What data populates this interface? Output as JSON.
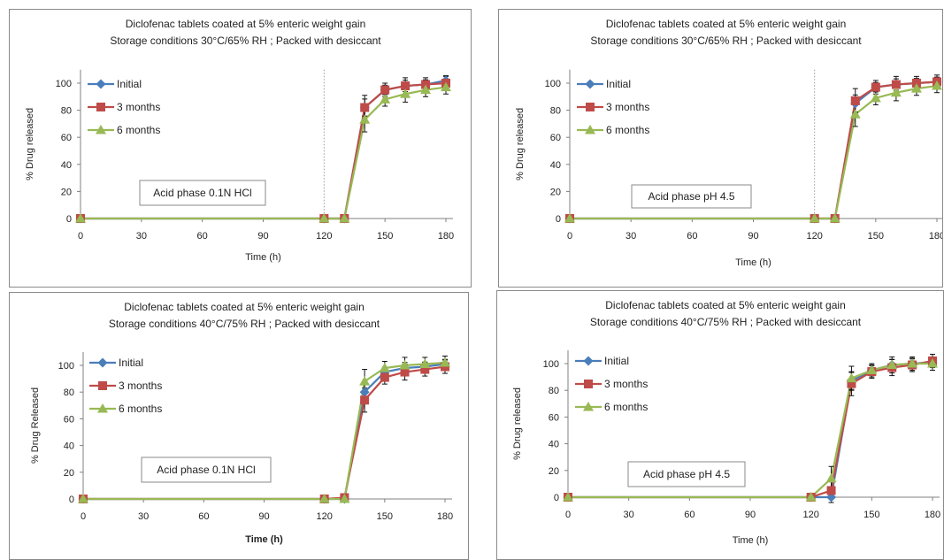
{
  "chart_data": [
    {
      "type": "line",
      "title": "Diclofenac tablets coated at 5% enteric weight gain",
      "subtitle": "Storage conditions 30°C/65% RH ; Packed with desiccant",
      "xlabel": "Time (h)",
      "ylabel": "% Drug released",
      "xlim": [
        0,
        180
      ],
      "ylim": [
        0,
        110
      ],
      "xticks": [
        "0",
        "30",
        "60",
        "90",
        "120",
        "150",
        "180"
      ],
      "yticks": [
        "0",
        "20",
        "40",
        "60",
        "80",
        "100"
      ],
      "x": [
        0,
        120,
        130,
        140,
        150,
        160,
        170,
        180
      ],
      "annotation": "Acid phase 0.1N HCl",
      "legend_position": "top-left",
      "reference_line_x": 120,
      "series": [
        {
          "name": "Initial",
          "color": "#4a7ebb",
          "marker": "diamond",
          "values": [
            0,
            0,
            0,
            82,
            95,
            98,
            99,
            102
          ]
        },
        {
          "name": "3 months",
          "color": "#be4b48",
          "marker": "square",
          "values": [
            0,
            0,
            0,
            82,
            95,
            98,
            99,
            100
          ]
        },
        {
          "name": "6 months",
          "color": "#98b954",
          "marker": "triangle",
          "values": [
            0,
            0,
            0,
            73,
            88,
            92,
            95,
            97
          ]
        }
      ]
    },
    {
      "type": "line",
      "title": "Diclofenac tablets coated at 5% enteric weight gain",
      "subtitle": "Storage conditions 30°C/65% RH ; Packed with desiccant",
      "xlabel": "Time (h)",
      "ylabel": "% Drug released",
      "xlim": [
        0,
        180
      ],
      "ylim": [
        0,
        110
      ],
      "xticks": [
        "0",
        "30",
        "60",
        "90",
        "120",
        "150",
        "180"
      ],
      "yticks": [
        "0",
        "20",
        "40",
        "60",
        "80",
        "100"
      ],
      "x": [
        0,
        120,
        130,
        140,
        150,
        160,
        170,
        180
      ],
      "annotation": "Acid phase pH 4.5",
      "legend_position": "top-left",
      "reference_line_x": 120,
      "series": [
        {
          "name": "Initial",
          "color": "#4a7ebb",
          "marker": "diamond",
          "values": [
            0,
            0,
            0,
            85,
            97,
            99,
            100,
            101
          ]
        },
        {
          "name": "3 months",
          "color": "#be4b48",
          "marker": "square",
          "values": [
            0,
            0,
            0,
            87,
            97,
            99,
            100,
            101
          ]
        },
        {
          "name": "6 months",
          "color": "#98b954",
          "marker": "triangle",
          "values": [
            0,
            0,
            0,
            77,
            89,
            93,
            96,
            98
          ]
        }
      ]
    },
    {
      "type": "line",
      "title": "Diclofenac tablets coated at 5% enteric weight gain",
      "subtitle": "Storage conditions 40°C/75% RH ; Packed with desiccant",
      "xlabel": "Time (h)",
      "ylabel": "% Drug Released",
      "xlim": [
        0,
        180
      ],
      "ylim": [
        0,
        110
      ],
      "xticks": [
        "0",
        "30",
        "60",
        "90",
        "120",
        "150",
        "180"
      ],
      "yticks": [
        "0",
        "20",
        "40",
        "60",
        "80",
        "100"
      ],
      "x": [
        0,
        120,
        130,
        140,
        150,
        160,
        170,
        180
      ],
      "annotation": "Acid phase 0.1N HCl",
      "legend_position": "top-left",
      "series": [
        {
          "name": "Initial",
          "color": "#4a7ebb",
          "marker": "diamond",
          "values": [
            0,
            0,
            0,
            80,
            95,
            98,
            99,
            101
          ]
        },
        {
          "name": "3 months",
          "color": "#be4b48",
          "marker": "square",
          "values": [
            0,
            0,
            1,
            74,
            91,
            95,
            97,
            99
          ]
        },
        {
          "name": "6 months",
          "color": "#98b954",
          "marker": "triangle",
          "values": [
            0,
            0,
            0,
            88,
            98,
            100,
            101,
            102
          ]
        }
      ]
    },
    {
      "type": "line",
      "title": "Diclofenac tablets coated at 5% enteric weight gain",
      "subtitle": "Storage conditions 40°C/75% RH ; Packed with desiccant",
      "xlabel": "Time (h)",
      "ylabel": "% Drug released",
      "xlim": [
        0,
        180
      ],
      "ylim": [
        0,
        110
      ],
      "xticks": [
        "0",
        "30",
        "60",
        "90",
        "120",
        "150",
        "180"
      ],
      "yticks": [
        "0",
        "20",
        "40",
        "60",
        "80",
        "100"
      ],
      "x": [
        0,
        120,
        130,
        140,
        150,
        160,
        170,
        180
      ],
      "annotation": "Acid phase pH 4.5",
      "legend_position": "top-left",
      "series": [
        {
          "name": "Initial",
          "color": "#4a7ebb",
          "marker": "diamond",
          "values": [
            0,
            0,
            0,
            87,
            95,
            99,
            100,
            101
          ]
        },
        {
          "name": "3 months",
          "color": "#be4b48",
          "marker": "square",
          "values": [
            0,
            0,
            5,
            85,
            94,
            97,
            99,
            102
          ]
        },
        {
          "name": "6 months",
          "color": "#98b954",
          "marker": "triangle",
          "values": [
            0,
            0,
            14,
            89,
            95,
            99,
            100,
            100
          ]
        }
      ]
    }
  ]
}
